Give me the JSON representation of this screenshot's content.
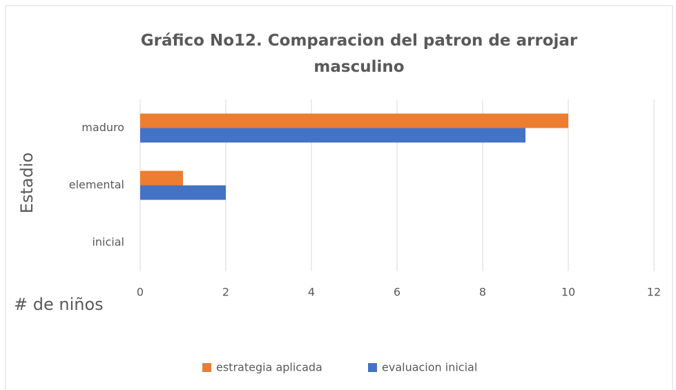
{
  "chart_data": {
    "type": "bar",
    "orientation": "horizontal",
    "title": "Gráfico No12. Comparacion del patron de arrojar masculino",
    "xlabel": "# de niños",
    "ylabel": "Estadio",
    "categories": [
      "inicial",
      "elemental",
      "maduro"
    ],
    "series": [
      {
        "name": "estrategia aplicada",
        "color": "#ed7d31",
        "values": [
          0,
          1,
          10
        ]
      },
      {
        "name": "evaluacion inicial",
        "color": "#4472c4",
        "values": [
          0,
          2,
          9
        ]
      }
    ],
    "xlim": [
      0,
      12
    ],
    "xticks": [
      0,
      2,
      4,
      6,
      8,
      10,
      12
    ],
    "grid": true,
    "legend": "bottom"
  }
}
